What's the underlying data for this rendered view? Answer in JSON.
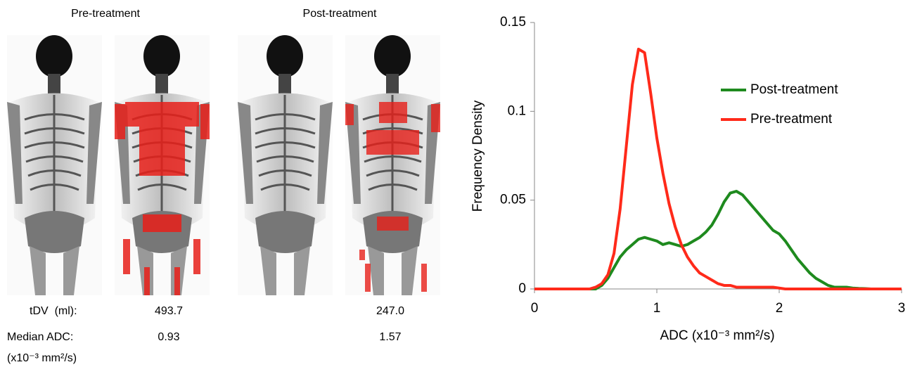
{
  "image_panel": {
    "titles": [
      "Pre-treatment",
      "Post-treatment"
    ],
    "row_labels": [
      "tDV  (ml):",
      "Median ADC:"
    ],
    "unit_label": "(x10⁻³ mm²/s)",
    "pre": [
      "493.7",
      "0.93"
    ],
    "post": [
      "247.0",
      "1.57"
    ]
  },
  "chart_data": {
    "type": "line",
    "xlabel": "ADC (x10⁻³ mm²/s)",
    "ylabel": "Frequency Density",
    "xlim": [
      0,
      3
    ],
    "xticks": [
      0,
      1,
      2,
      3
    ],
    "ylim": [
      0,
      0.15
    ],
    "yticks": [
      0,
      0.05,
      0.1,
      0.15
    ],
    "legend": "right",
    "x": [
      0,
      0.05,
      0.1,
      0.15,
      0.2,
      0.25,
      0.3,
      0.35,
      0.4,
      0.45,
      0.5,
      0.55,
      0.6,
      0.65,
      0.7,
      0.75,
      0.8,
      0.85,
      0.9,
      0.95,
      1,
      1.05,
      1.1,
      1.15,
      1.2,
      1.25,
      1.3,
      1.35,
      1.4,
      1.45,
      1.5,
      1.55,
      1.6,
      1.65,
      1.7,
      1.75,
      1.8,
      1.85,
      1.9,
      1.95,
      2,
      2.05,
      2.1,
      2.15,
      2.2,
      2.25,
      2.3,
      2.35,
      2.4,
      2.45,
      2.5,
      2.55,
      2.6,
      2.65,
      2.7,
      2.75,
      2.8,
      2.85,
      2.9,
      2.95,
      3
    ],
    "series": [
      {
        "name": "Post-treatment",
        "color": "#1e8a1e",
        "values": [
          0,
          0,
          0,
          0,
          0,
          0,
          0,
          0,
          0,
          0,
          0,
          0.002,
          0.006,
          0.012,
          0.018,
          0.022,
          0.025,
          0.028,
          0.029,
          0.028,
          0.027,
          0.025,
          0.026,
          0.025,
          0.024,
          0.025,
          0.027,
          0.029,
          0.032,
          0.036,
          0.042,
          0.049,
          0.054,
          0.055,
          0.053,
          0.049,
          0.045,
          0.041,
          0.037,
          0.033,
          0.031,
          0.027,
          0.022,
          0.017,
          0.013,
          0.009,
          0.006,
          0.004,
          0.002,
          0.001,
          0.001,
          0.001,
          0.0005,
          0.0003,
          0.0002,
          0,
          0,
          0,
          0,
          0,
          0
        ]
      },
      {
        "name": "Pre-treatment",
        "color": "#ff2a1a",
        "values": [
          0,
          0,
          0,
          0,
          0,
          0,
          0,
          0,
          0,
          0,
          0.001,
          0.003,
          0.008,
          0.02,
          0.045,
          0.08,
          0.115,
          0.135,
          0.133,
          0.11,
          0.085,
          0.065,
          0.048,
          0.035,
          0.025,
          0.018,
          0.013,
          0.009,
          0.007,
          0.005,
          0.003,
          0.002,
          0.002,
          0.001,
          0.001,
          0.001,
          0.001,
          0.001,
          0.001,
          0.001,
          0.0005,
          0,
          0,
          0,
          0,
          0,
          0,
          0,
          0,
          0,
          0,
          0,
          0,
          0,
          0,
          0,
          0,
          0,
          0,
          0,
          0
        ]
      }
    ]
  }
}
